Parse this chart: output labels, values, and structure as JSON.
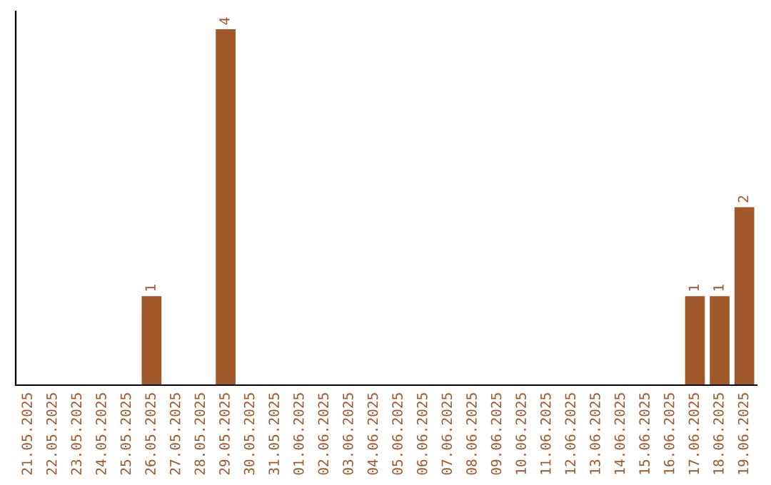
{
  "chart_data": {
    "type": "bar",
    "categories": [
      "21.05.2025",
      "22.05.2025",
      "23.05.2025",
      "24.05.2025",
      "25.05.2025",
      "26.05.2025",
      "27.05.2025",
      "28.05.2025",
      "29.05.2025",
      "30.05.2025",
      "31.05.2025",
      "01.06.2025",
      "02.06.2025",
      "03.06.2025",
      "04.06.2025",
      "05.06.2025",
      "06.06.2025",
      "07.06.2025",
      "08.06.2025",
      "09.06.2025",
      "10.06.2025",
      "11.06.2025",
      "12.06.2025",
      "13.06.2025",
      "14.06.2025",
      "15.06.2025",
      "16.06.2025",
      "17.06.2025",
      "18.06.2025",
      "19.06.2025"
    ],
    "values": [
      0,
      0,
      0,
      0,
      0,
      1,
      0,
      0,
      4,
      0,
      0,
      0,
      0,
      0,
      0,
      0,
      0,
      0,
      0,
      0,
      0,
      0,
      0,
      0,
      0,
      0,
      0,
      1,
      1,
      2
    ],
    "value_labels": [
      null,
      null,
      null,
      null,
      null,
      "1",
      null,
      null,
      "4",
      null,
      null,
      null,
      null,
      null,
      null,
      null,
      null,
      null,
      null,
      null,
      null,
      null,
      null,
      null,
      null,
      null,
      null,
      "1",
      "1",
      "2"
    ],
    "color": "#a0582a",
    "tick_labels": "x",
    "grid": false,
    "legend": false
  }
}
